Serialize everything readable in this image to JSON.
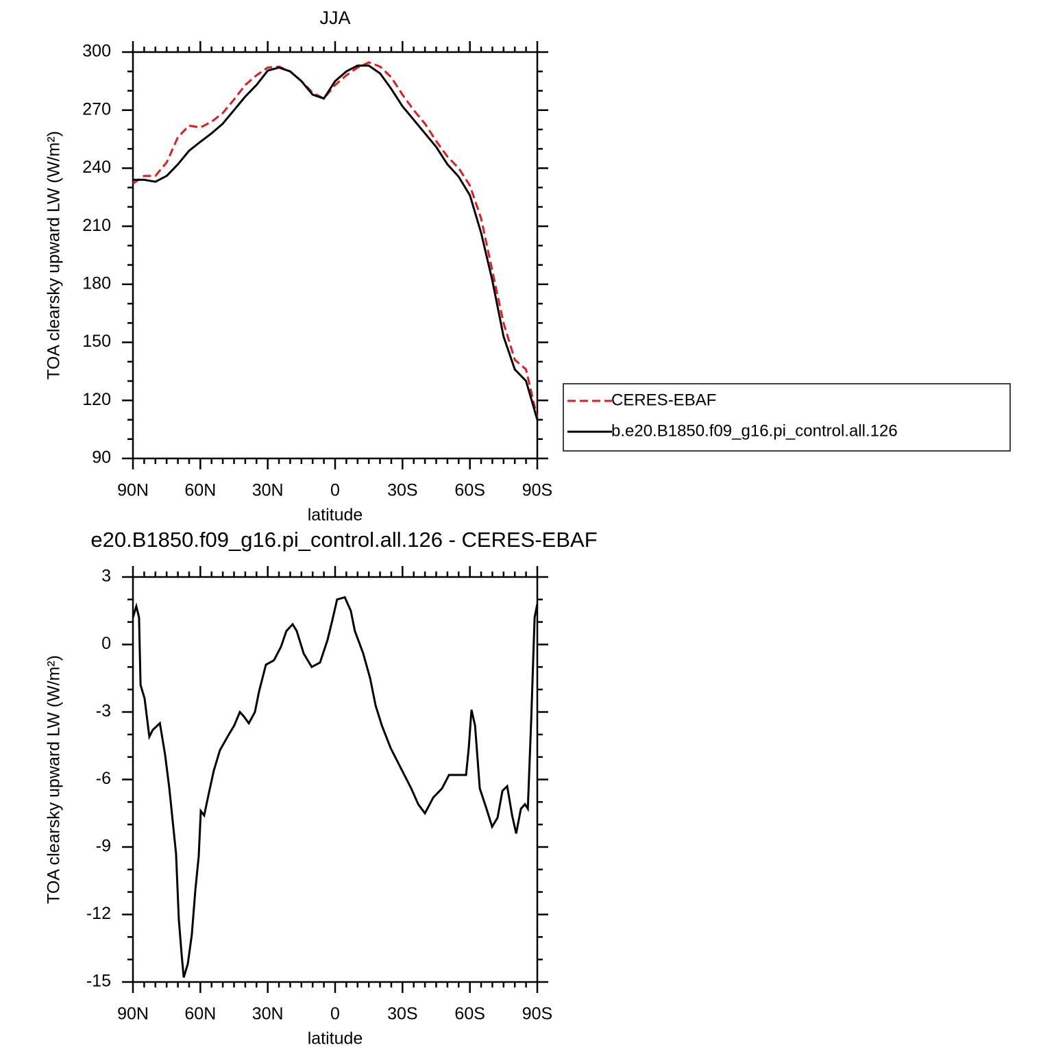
{
  "chart_data": [
    {
      "type": "line",
      "title": "JJA",
      "xlabel": "latitude",
      "ylabel": "TOA clearsky upward LW (W/m²)",
      "x": [
        90,
        85,
        80,
        75,
        70,
        65,
        60,
        55,
        50,
        45,
        40,
        35,
        30,
        25,
        20,
        15,
        10,
        5,
        0,
        -5,
        -10,
        -15,
        -20,
        -25,
        -30,
        -35,
        -40,
        -45,
        -50,
        -55,
        -60,
        -65,
        -70,
        -75,
        -80,
        -85,
        -90
      ],
      "series": [
        {
          "name": "CERES-EBAF",
          "color": "#e41a1c",
          "dash": "dashed",
          "values": [
            232,
            236,
            236,
            243,
            256,
            262,
            261,
            264,
            268.5,
            275.5,
            283,
            288,
            292,
            292.5,
            290,
            285,
            279,
            276,
            283,
            288,
            292,
            294.7,
            292.5,
            287,
            278,
            270,
            263,
            254,
            246,
            240,
            231,
            214,
            187,
            160,
            141,
            136,
            111
          ]
        },
        {
          "name": "b.e20.B1850.f09_g16.pi_control.all.126",
          "color": "#000000",
          "dash": "solid",
          "values": [
            234,
            234,
            233,
            236,
            242,
            249,
            253.6,
            258,
            263,
            270,
            277,
            283,
            290.4,
            292,
            290,
            285,
            278,
            276,
            285,
            290,
            293,
            293,
            289,
            281,
            272,
            265,
            258,
            251,
            242,
            235.6,
            226,
            206.5,
            182,
            153,
            136,
            130,
            110
          ]
        }
      ],
      "xlim": [
        90,
        -90
      ],
      "xticks": [
        {
          "value": 90,
          "label": "90N"
        },
        {
          "value": 60,
          "label": "60N"
        },
        {
          "value": 30,
          "label": "30N"
        },
        0,
        {
          "value": -30,
          "label": "30S"
        },
        {
          "value": -60,
          "label": "60S"
        },
        {
          "value": -90,
          "label": "90S"
        }
      ],
      "ylim": [
        90,
        300
      ],
      "yticks": [
        90,
        120,
        150,
        180,
        210,
        240,
        270,
        300
      ],
      "legend": "right"
    },
    {
      "type": "line",
      "title": "e20.B1850.f09_g16.pi_control.all.126 - CERES-EBAF",
      "xlabel": "latitude",
      "ylabel": "TOA clearsky upward LW (W/m²)",
      "x": [
        90,
        88.5,
        87.3,
        86.6,
        84.8,
        82.7,
        81.2,
        78,
        75.7,
        73.8,
        70.8,
        69.6,
        68.3,
        67.4,
        65.6,
        63.8,
        62.2,
        60.7,
        59.8,
        58.3,
        56.4,
        54,
        51.3,
        47.9,
        44.9,
        42.4,
        40.6,
        38.4,
        35.7,
        33.9,
        30.8,
        27.2,
        24.1,
        21.7,
        18.9,
        17.1,
        14,
        10.4,
        6.7,
        3.4,
        1.2,
        -0.9,
        -4.3,
        -7,
        -8.8,
        -12.5,
        -15.6,
        -18,
        -20.8,
        -24.7,
        -29.3,
        -33.9,
        -37,
        -40,
        -43.7,
        -47.6,
        -50.7,
        -55.3,
        -58.3,
        -59.5,
        -60.7,
        -62.3,
        -64.4,
        -67.4,
        -69.9,
        -72.3,
        -74.5,
        -76.6,
        -78.8,
        -80.6,
        -82.7,
        -84.5,
        -85.8,
        -87.3,
        -88.8,
        -90
      ],
      "values": [
        1.2,
        1.7,
        1.2,
        -1.8,
        -2.4,
        -4.1,
        -3.8,
        -3.5,
        -4.9,
        -6.4,
        -9.3,
        -12.2,
        -13.8,
        -14.8,
        -14.2,
        -12.9,
        -10.9,
        -9.4,
        -7.4,
        -7.6,
        -6.7,
        -5.6,
        -4.7,
        -4.1,
        -3.6,
        -3.0,
        -3.2,
        -3.5,
        -3.0,
        -2.1,
        -0.9,
        -0.7,
        -0.1,
        0.6,
        0.9,
        0.6,
        -0.4,
        -1.0,
        -0.8,
        0.2,
        1.1,
        2.0,
        2.1,
        1.5,
        0.6,
        -0.4,
        -1.5,
        -2.7,
        -3.6,
        -4.6,
        -5.5,
        -6.4,
        -7.1,
        -7.5,
        -6.8,
        -6.4,
        -5.8,
        -5.8,
        -5.8,
        -4.6,
        -2.9,
        -3.6,
        -6.4,
        -7.3,
        -8.1,
        -7.7,
        -6.5,
        -6.3,
        -7.6,
        -8.4,
        -7.3,
        -7.1,
        -7.3,
        -3.3,
        1.2,
        1.8
      ],
      "color": "#000000",
      "xlim": [
        90,
        -90
      ],
      "xticks": [
        {
          "value": 90,
          "label": "90N"
        },
        {
          "value": 60,
          "label": "60N"
        },
        {
          "value": 30,
          "label": "30N"
        },
        0,
        {
          "value": -30,
          "label": "30S"
        },
        {
          "value": -60,
          "label": "60S"
        },
        {
          "value": -90,
          "label": "90S"
        }
      ],
      "ylim": [
        -15,
        3
      ],
      "yticks": [
        -15,
        -12,
        -9,
        -6,
        -3,
        0,
        3
      ]
    }
  ]
}
